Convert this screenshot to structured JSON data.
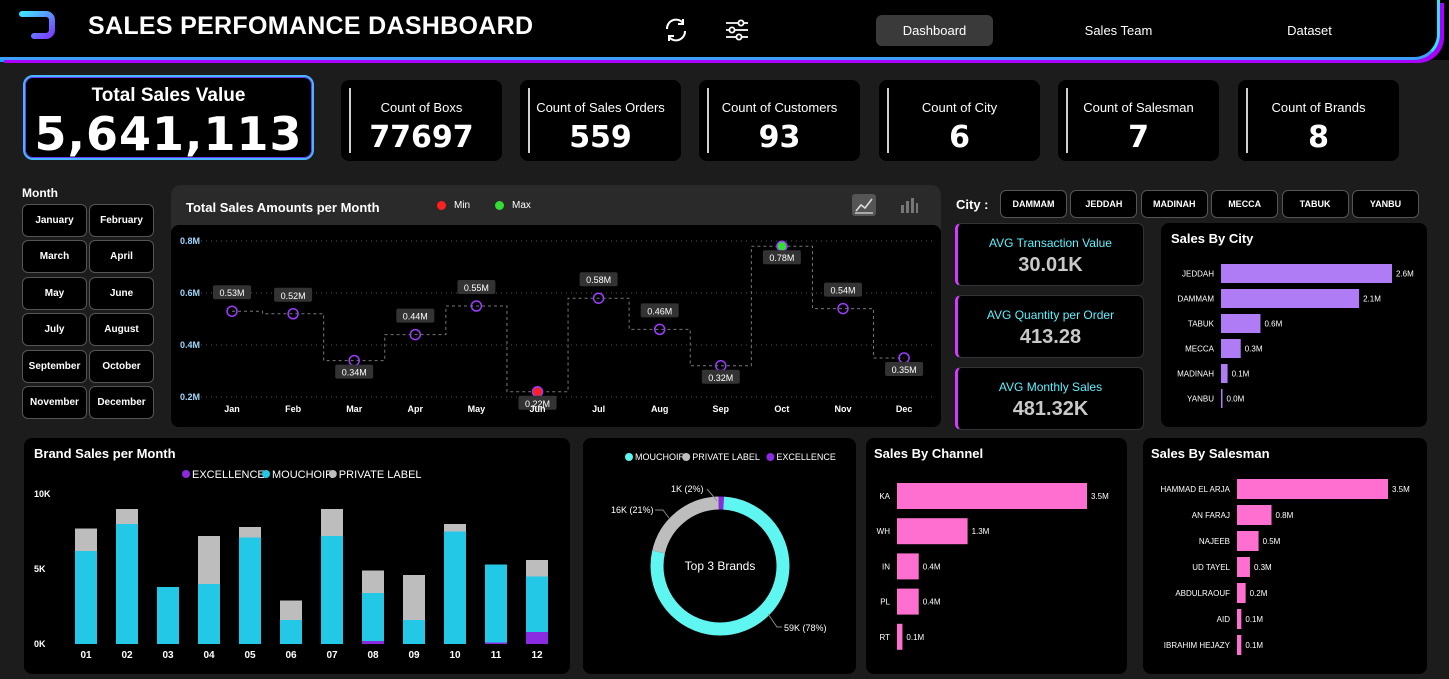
{
  "header": {
    "title": "SALES PERFOMANCE DASHBOARD",
    "nav": [
      {
        "label": "Dashboard",
        "active": true
      },
      {
        "label": "Sales Team",
        "active": false
      },
      {
        "label": "Dataset",
        "active": false
      }
    ],
    "icons": [
      "refresh-icon",
      "filter-sliders-icon"
    ]
  },
  "kpis": {
    "total_sales": {
      "label": "Total Sales Value",
      "value": "5,641,113"
    },
    "cards": [
      {
        "label": "Count of Boxs",
        "value": "77697"
      },
      {
        "label": "Count of Sales Orders",
        "value": "559"
      },
      {
        "label": "Count of Customers",
        "value": "93"
      },
      {
        "label": "Count of City",
        "value": "6"
      },
      {
        "label": "Count of Salesman",
        "value": "7"
      },
      {
        "label": "Count of Brands",
        "value": "8"
      }
    ]
  },
  "month_filter": {
    "label": "Month",
    "months": [
      "January",
      "February",
      "March",
      "April",
      "May",
      "June",
      "July",
      "August",
      "September",
      "October",
      "November",
      "December"
    ]
  },
  "city_filter": {
    "label": "City :",
    "cities": [
      "DAMMAM",
      "JEDDAH",
      "MADINAH",
      "MECCA",
      "TABUK",
      "YANBU"
    ]
  },
  "averages": [
    {
      "label": "AVG Transaction Value",
      "value": "30.01K"
    },
    {
      "label": "AVG Quantity per Order",
      "value": "413.28"
    },
    {
      "label": "AVG Monthly Sales",
      "value": "481.32K"
    }
  ],
  "colors": {
    "accent_purple": "#9b3cff",
    "cyan": "#22c8e6",
    "pink": "#ff6fd0",
    "lavender": "#b07cf5",
    "min": "#ff2020",
    "max": "#33dd33"
  },
  "chart_data": [
    {
      "id": "monthly-sales",
      "type": "line",
      "title": "Total Sales Amounts per Month",
      "legend": [
        {
          "name": "Min",
          "color": "#ff2020"
        },
        {
          "name": "Max",
          "color": "#33dd33"
        }
      ],
      "categories": [
        "Jan",
        "Feb",
        "Mar",
        "Apr",
        "May",
        "Jun",
        "Jul",
        "Aug",
        "Sep",
        "Oct",
        "Nov",
        "Dec"
      ],
      "values": [
        0.53,
        0.52,
        0.34,
        0.44,
        0.55,
        0.22,
        0.58,
        0.46,
        0.32,
        0.78,
        0.54,
        0.35
      ],
      "labels": [
        "0.53M",
        "0.52M",
        "0.34M",
        "0.44M",
        "0.55M",
        "0.22M",
        "0.58M",
        "0.46M",
        "0.32M",
        "0.78M",
        "0.54M",
        "0.35M"
      ],
      "yticks": [
        "0.2M",
        "0.4M",
        "0.6M",
        "0.8M"
      ],
      "ylim": [
        0.2,
        0.8
      ],
      "min_index": 5,
      "max_index": 9
    },
    {
      "id": "sales-by-city",
      "type": "bar",
      "title": "Sales By City",
      "categories": [
        "JEDDAH",
        "DAMMAM",
        "TABUK",
        "MECCA",
        "MADINAH",
        "YANBU"
      ],
      "values": [
        2.6,
        2.1,
        0.6,
        0.3,
        0.1,
        0.0
      ],
      "labels": [
        "2.6M",
        "2.1M",
        "0.6M",
        "0.3M",
        "0.1M",
        "0.0M"
      ]
    },
    {
      "id": "brand-sales-month",
      "type": "bar",
      "title": "Brand Sales per Month",
      "categories": [
        "01",
        "02",
        "03",
        "04",
        "05",
        "06",
        "07",
        "08",
        "09",
        "10",
        "11",
        "12"
      ],
      "yticks": [
        "0K",
        "5K",
        "10K"
      ],
      "ylim": [
        0,
        10
      ],
      "series": [
        {
          "name": "EXCELLENCE",
          "color": "#8a2be2",
          "values": [
            0,
            0,
            0,
            0,
            0,
            0,
            0,
            0.2,
            0,
            0,
            0.1,
            0.8
          ]
        },
        {
          "name": "MOUCHOIR",
          "color": "#22c8e6",
          "values": [
            6.2,
            8.0,
            3.8,
            4.0,
            7.1,
            1.6,
            7.2,
            3.2,
            1.6,
            7.5,
            5.2,
            3.7
          ]
        },
        {
          "name": "PRIVATE LABEL",
          "color": "#bdbdbd",
          "values": [
            1.5,
            1.0,
            0,
            3.2,
            0.7,
            1.3,
            1.8,
            1.5,
            3.0,
            0.5,
            0,
            1.1
          ]
        }
      ]
    },
    {
      "id": "top-3-brands",
      "type": "pie",
      "title": "Top 3 Brands",
      "legend": [
        {
          "name": "MOUCHOIR",
          "color": "#5ff5f0"
        },
        {
          "name": "PRIVATE LABEL",
          "color": "#bdbdbd"
        },
        {
          "name": "EXCELLENCE",
          "color": "#8a2be2"
        }
      ],
      "slices": [
        {
          "name": "MOUCHOIR",
          "value": 59,
          "label": "59K (78%)",
          "color": "#5ff5f0"
        },
        {
          "name": "PRIVATE LABEL",
          "value": 16,
          "label": "16K (21%)",
          "color": "#bdbdbd"
        },
        {
          "name": "EXCELLENCE",
          "value": 1,
          "label": "1K (2%)",
          "color": "#8a2be2"
        }
      ]
    },
    {
      "id": "sales-by-channel",
      "type": "bar",
      "title": "Sales By Channel",
      "categories": [
        "KA",
        "WH",
        "IN",
        "PL",
        "RT"
      ],
      "values": [
        3.5,
        1.3,
        0.4,
        0.4,
        0.1
      ],
      "labels": [
        "3.5M",
        "1.3M",
        "0.4M",
        "0.4M",
        "0.1M"
      ]
    },
    {
      "id": "sales-by-salesman",
      "type": "bar",
      "title": "Sales By Salesman",
      "categories": [
        "HAMMAD EL ARJA",
        "AN FARAJ",
        "NAJEEB",
        "UD TAYEL",
        "ABDULRAOUF",
        "AID",
        "IBRAHIM HEJAZY"
      ],
      "values": [
        3.5,
        0.8,
        0.5,
        0.3,
        0.2,
        0.1,
        0.1
      ],
      "labels": [
        "3.5M",
        "0.8M",
        "0.5M",
        "0.3M",
        "0.2M",
        "0.1M",
        "0.1M"
      ]
    }
  ]
}
